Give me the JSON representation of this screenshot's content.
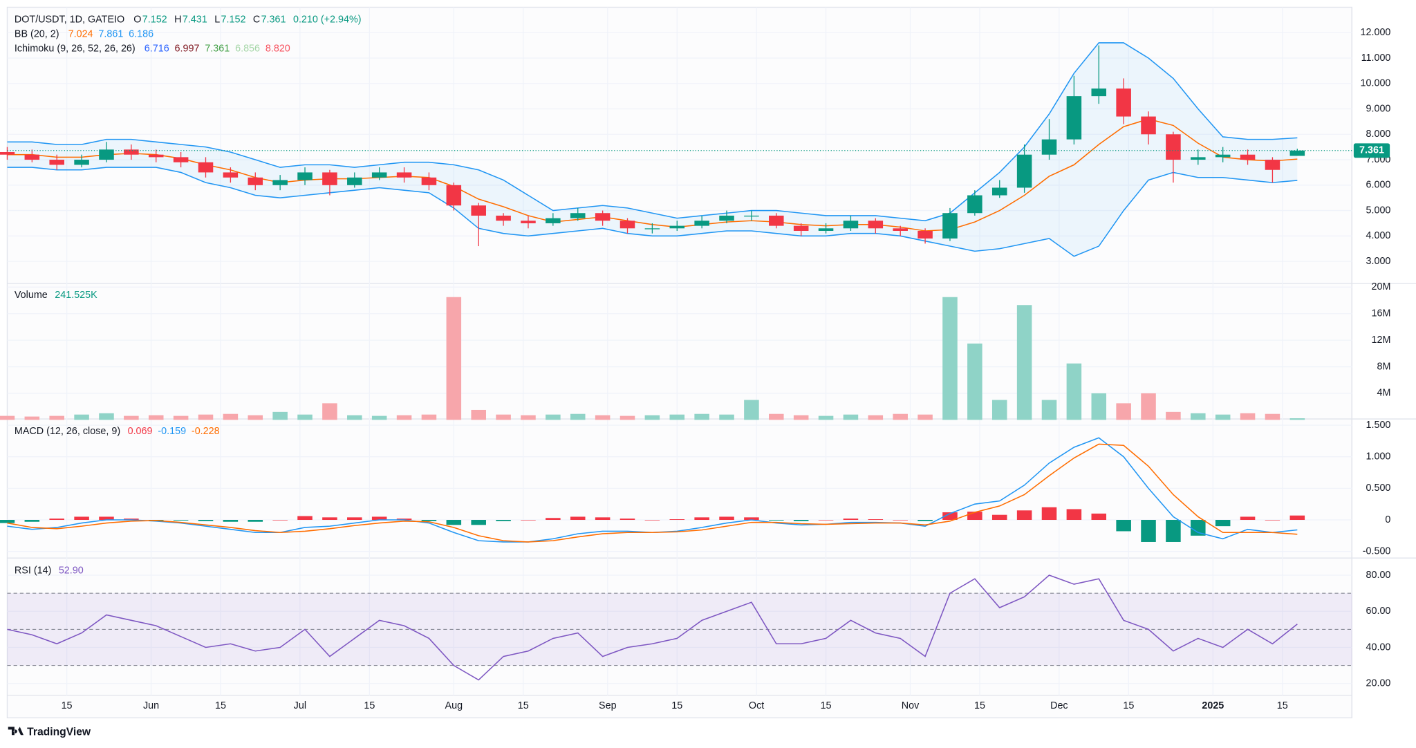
{
  "chart_data": [
    {
      "type": "candlestick",
      "title": "DOT/USDT, 1D, GATEIO",
      "ohlc_labels": [
        "O",
        "H",
        "L",
        "C"
      ],
      "change": "0.210 (+2.94%)",
      "up_color": "#089981",
      "down_color": "#f23645",
      "x": [
        0,
        5,
        10,
        15,
        20,
        25,
        30,
        35,
        40,
        45,
        50,
        55,
        60,
        65,
        70,
        75,
        80,
        85,
        90,
        95,
        100,
        105,
        110,
        115,
        120,
        125,
        130,
        135,
        140,
        145,
        150,
        155,
        160,
        165,
        170,
        175,
        180,
        185,
        190,
        195,
        200,
        205,
        210,
        215,
        220,
        225,
        230,
        235,
        240,
        245,
        250,
        255,
        260
      ],
      "xlim": [
        0,
        271
      ],
      "xticks": [
        {
          "value": 12,
          "label": "15"
        },
        {
          "value": 29,
          "label": "Jun"
        },
        {
          "value": 43,
          "label": "15"
        },
        {
          "value": 59,
          "label": "Jul"
        },
        {
          "value": 73,
          "label": "15"
        },
        {
          "value": 90,
          "label": "Aug"
        },
        {
          "value": 104,
          "label": "15"
        },
        {
          "value": 121,
          "label": "Sep"
        },
        {
          "value": 135,
          "label": "15"
        },
        {
          "value": 151,
          "label": "Oct"
        },
        {
          "value": 165,
          "label": "15"
        },
        {
          "value": 182,
          "label": "Nov"
        },
        {
          "value": 196,
          "label": "15"
        },
        {
          "value": 212,
          "label": "Dec"
        },
        {
          "value": 226,
          "label": "15"
        },
        {
          "value": 243,
          "label": "2025"
        },
        {
          "value": 257,
          "label": "15"
        }
      ],
      "open": [
        7.3,
        7.2,
        7.0,
        6.8,
        7.0,
        7.4,
        7.2,
        7.1,
        6.9,
        6.5,
        6.3,
        6.0,
        6.2,
        6.5,
        6.0,
        6.3,
        6.5,
        6.3,
        6.0,
        5.2,
        4.8,
        4.6,
        4.5,
        4.7,
        4.9,
        4.6,
        4.3,
        4.3,
        4.4,
        4.6,
        4.8,
        4.8,
        4.4,
        4.2,
        4.3,
        4.6,
        4.3,
        4.2,
        3.9,
        4.9,
        5.6,
        5.9,
        7.2,
        7.8,
        9.5,
        9.8,
        8.7,
        8.0,
        7.0,
        7.1,
        7.2,
        7.0,
        7.152
      ],
      "high": [
        7.5,
        7.4,
        7.2,
        7.2,
        7.7,
        7.6,
        7.4,
        7.3,
        7.1,
        6.7,
        6.5,
        6.4,
        6.7,
        6.6,
        6.5,
        6.7,
        6.7,
        6.5,
        6.1,
        5.3,
        4.9,
        4.8,
        4.9,
        5.1,
        5.0,
        4.7,
        4.5,
        4.6,
        4.8,
        5.0,
        5.0,
        4.9,
        4.5,
        4.5,
        4.8,
        4.7,
        4.4,
        4.3,
        5.1,
        5.8,
        6.2,
        7.6,
        8.6,
        10.3,
        11.5,
        10.2,
        8.9,
        8.1,
        7.4,
        7.5,
        7.4,
        7.1,
        7.431
      ],
      "low": [
        7.0,
        6.9,
        6.6,
        6.7,
        6.9,
        7.0,
        6.9,
        6.7,
        6.3,
        6.1,
        5.8,
        5.8,
        6.0,
        5.6,
        5.9,
        6.2,
        6.1,
        5.8,
        5.0,
        3.6,
        4.4,
        4.3,
        4.4,
        4.6,
        4.4,
        4.1,
        4.1,
        4.2,
        4.3,
        4.5,
        4.6,
        4.3,
        4.0,
        4.1,
        4.2,
        4.1,
        4.0,
        3.7,
        3.8,
        4.8,
        5.5,
        5.7,
        7.0,
        7.6,
        9.2,
        8.4,
        7.6,
        6.1,
        6.8,
        6.9,
        6.8,
        6.1,
        7.152
      ],
      "close": [
        7.2,
        7.0,
        6.8,
        7.0,
        7.4,
        7.2,
        7.1,
        6.9,
        6.5,
        6.3,
        6.0,
        6.2,
        6.5,
        6.0,
        6.3,
        6.5,
        6.3,
        6.0,
        5.2,
        4.8,
        4.6,
        4.5,
        4.7,
        4.9,
        4.6,
        4.3,
        4.3,
        4.4,
        4.6,
        4.8,
        4.8,
        4.4,
        4.2,
        4.3,
        4.6,
        4.3,
        4.2,
        3.9,
        4.9,
        5.6,
        5.9,
        7.2,
        7.8,
        9.5,
        9.8,
        8.7,
        8.0,
        7.0,
        7.1,
        7.2,
        7.0,
        6.6,
        7.361
      ],
      "bollinger": {
        "label": "BB (20, 2)",
        "basis_color": "#ff6d00",
        "band_color": "#2196f3",
        "fill": "rgba(33,150,243,0.07)",
        "basis": [
          7.2,
          7.2,
          7.1,
          7.1,
          7.2,
          7.25,
          7.2,
          7.05,
          6.8,
          6.6,
          6.3,
          6.1,
          6.2,
          6.25,
          6.25,
          6.3,
          6.35,
          6.3,
          5.95,
          5.45,
          5.15,
          4.8,
          4.55,
          4.65,
          4.75,
          4.6,
          4.45,
          4.35,
          4.45,
          4.55,
          4.6,
          4.55,
          4.45,
          4.4,
          4.45,
          4.45,
          4.35,
          4.2,
          4.25,
          4.55,
          5.0,
          5.6,
          6.35,
          6.8,
          7.6,
          8.3,
          8.6,
          8.35,
          7.65,
          7.1,
          7.0,
          6.95,
          7.024
        ],
        "upper": [
          7.7,
          7.7,
          7.6,
          7.6,
          7.8,
          7.8,
          7.7,
          7.6,
          7.5,
          7.3,
          7.0,
          6.7,
          6.8,
          6.8,
          6.7,
          6.8,
          6.9,
          6.9,
          6.8,
          6.6,
          6.2,
          5.6,
          5.0,
          5.1,
          5.2,
          5.1,
          4.9,
          4.7,
          4.8,
          4.9,
          5.0,
          5.0,
          4.9,
          4.8,
          4.8,
          4.8,
          4.7,
          4.6,
          4.9,
          5.7,
          6.5,
          7.5,
          8.8,
          10.4,
          11.6,
          11.6,
          11.0,
          10.2,
          9.0,
          7.9,
          7.8,
          7.8,
          7.861
        ],
        "lower": [
          6.7,
          6.7,
          6.6,
          6.6,
          6.7,
          6.7,
          6.7,
          6.5,
          6.1,
          5.9,
          5.6,
          5.5,
          5.6,
          5.7,
          5.8,
          5.9,
          5.8,
          5.7,
          5.1,
          4.3,
          4.1,
          4.0,
          4.1,
          4.2,
          4.3,
          4.1,
          4.0,
          4.0,
          4.1,
          4.2,
          4.2,
          4.1,
          4.0,
          4.0,
          4.1,
          4.1,
          4.0,
          3.8,
          3.6,
          3.4,
          3.5,
          3.7,
          3.9,
          3.2,
          3.6,
          5.0,
          6.2,
          6.5,
          6.3,
          6.3,
          6.2,
          6.1,
          6.186
        ]
      },
      "ichimoku": {
        "label": "Ichimoku (9, 26, 52, 26, 26)",
        "values": [
          "6.716",
          "6.997",
          "7.361",
          "6.856",
          "8.820"
        ],
        "colors": [
          "#2962ff",
          "#801922",
          "#43a047",
          "#a5d6a7",
          "#f7525f"
        ]
      },
      "ylim": [
        2.2,
        13.0
      ],
      "yticks": [
        {
          "value": 3,
          "label": "3.000"
        },
        {
          "value": 4,
          "label": "4.000"
        },
        {
          "value": 5,
          "label": "5.000"
        },
        {
          "value": 6,
          "label": "6.000"
        },
        {
          "value": 7,
          "label": "7.000"
        },
        {
          "value": 8,
          "label": "8.000"
        },
        {
          "value": 9,
          "label": "9.000"
        },
        {
          "value": 10,
          "label": "10.000"
        },
        {
          "value": 11,
          "label": "11.000"
        },
        {
          "value": 12,
          "label": "12.000"
        }
      ],
      "grid": true
    },
    {
      "type": "bar",
      "label": "Volume",
      "last": "241.525K",
      "up_color": "#8fd3c7",
      "down_color": "#f7a6ab",
      "values": [
        0.6,
        0.5,
        0.6,
        0.8,
        1.0,
        0.6,
        0.7,
        0.6,
        0.8,
        0.9,
        0.7,
        1.2,
        0.8,
        2.5,
        0.7,
        0.6,
        0.7,
        0.8,
        18.5,
        1.5,
        0.8,
        0.7,
        0.8,
        0.9,
        0.7,
        0.6,
        0.7,
        0.8,
        0.9,
        0.8,
        3.0,
        0.9,
        0.7,
        0.6,
        0.8,
        0.7,
        0.9,
        0.8,
        18.5,
        11.5,
        3.0,
        17.3,
        3.0,
        8.5,
        4.0,
        2.5,
        4.0,
        1.2,
        1.0,
        0.8,
        1.0,
        0.9,
        0.241525
      ],
      "ylim": [
        0,
        20.27
      ],
      "yticks": [
        {
          "value": 4,
          "label": "4M"
        },
        {
          "value": 8,
          "label": "8M"
        },
        {
          "value": 12,
          "label": "12M"
        },
        {
          "value": 16,
          "label": "16M"
        },
        {
          "value": 20,
          "label": "20M"
        }
      ],
      "grid": true
    },
    {
      "type": "combo",
      "label": "MACD (12, 26, close, 9)",
      "histogram": {
        "positive_color": "#f23645",
        "negative_color": "#089981",
        "values": [
          -0.05,
          -0.03,
          0.02,
          0.05,
          0.05,
          0.02,
          -0.01,
          -0.01,
          -0.02,
          -0.03,
          -0.03,
          0,
          0.06,
          0.04,
          0.04,
          0.05,
          0.02,
          -0.02,
          -0.08,
          -0.08,
          -0.02,
          0,
          0.03,
          0.05,
          0.04,
          0.02,
          0,
          0.01,
          0.04,
          0.05,
          0.04,
          -0.01,
          -0.02,
          0,
          0.02,
          0.01,
          0,
          -0.02,
          0.12,
          0.13,
          0.08,
          0.15,
          0.2,
          0.17,
          0.1,
          -0.18,
          -0.35,
          -0.35,
          -0.25,
          -0.1,
          0.05,
          0,
          0.069
        ]
      },
      "macd": {
        "color": "#2196f3",
        "values": [
          -0.1,
          -0.15,
          -0.12,
          -0.05,
          0,
          0,
          -0.02,
          -0.05,
          -0.1,
          -0.15,
          -0.2,
          -0.2,
          -0.12,
          -0.1,
          -0.05,
          0,
          0,
          -0.05,
          -0.2,
          -0.33,
          -0.35,
          -0.35,
          -0.3,
          -0.22,
          -0.18,
          -0.18,
          -0.2,
          -0.18,
          -0.12,
          -0.05,
          0,
          -0.05,
          -0.08,
          -0.07,
          -0.04,
          -0.04,
          -0.05,
          -0.1,
          0.1,
          0.25,
          0.3,
          0.55,
          0.9,
          1.15,
          1.3,
          1.0,
          0.5,
          0.05,
          -0.2,
          -0.3,
          -0.15,
          -0.2,
          -0.159
        ]
      },
      "signal": {
        "color": "#ff6d00",
        "values": [
          -0.05,
          -0.12,
          -0.14,
          -0.1,
          -0.05,
          -0.02,
          -0.01,
          -0.04,
          -0.08,
          -0.12,
          -0.17,
          -0.2,
          -0.18,
          -0.14,
          -0.09,
          -0.05,
          -0.02,
          -0.03,
          -0.12,
          -0.25,
          -0.33,
          -0.35,
          -0.33,
          -0.27,
          -0.22,
          -0.2,
          -0.2,
          -0.19,
          -0.16,
          -0.1,
          -0.04,
          -0.04,
          -0.06,
          -0.07,
          -0.06,
          -0.05,
          -0.05,
          -0.08,
          -0.02,
          0.12,
          0.22,
          0.4,
          0.7,
          0.98,
          1.2,
          1.18,
          0.85,
          0.4,
          0.05,
          -0.2,
          -0.2,
          -0.2,
          -0.228
        ]
      },
      "ylim": [
        -0.59,
        1.57
      ],
      "yticks": [
        {
          "value": -0.5,
          "label": "-0.500"
        },
        0,
        {
          "value": 0.5,
          "label": "0.500"
        },
        {
          "value": 1,
          "label": "1.000"
        },
        {
          "value": 1.5,
          "label": "1.500"
        }
      ],
      "grid": true
    },
    {
      "type": "line",
      "label": "RSI (14)",
      "last": "52.90",
      "color": "#7e57c2",
      "band_fill": "rgba(126,87,194,0.1)",
      "bands": [
        70,
        50,
        30
      ],
      "values": [
        50,
        47,
        42,
        48,
        58,
        55,
        52,
        46,
        40,
        42,
        38,
        40,
        50,
        35,
        45,
        55,
        52,
        45,
        30,
        22,
        35,
        38,
        45,
        48,
        35,
        40,
        42,
        45,
        55,
        60,
        65,
        42,
        42,
        45,
        55,
        48,
        45,
        35,
        70,
        78,
        62,
        68,
        80,
        75,
        78,
        55,
        50,
        38,
        45,
        40,
        50,
        42,
        52.9
      ],
      "ylim": [
        13.5,
        88.5
      ],
      "yticks": [
        {
          "value": 20,
          "label": "20.00"
        },
        {
          "value": 40,
          "label": "40.00"
        },
        {
          "value": 60,
          "label": "60.00"
        },
        {
          "value": 80,
          "label": "80.00"
        }
      ],
      "grid": true
    }
  ],
  "branding": "TradingView"
}
